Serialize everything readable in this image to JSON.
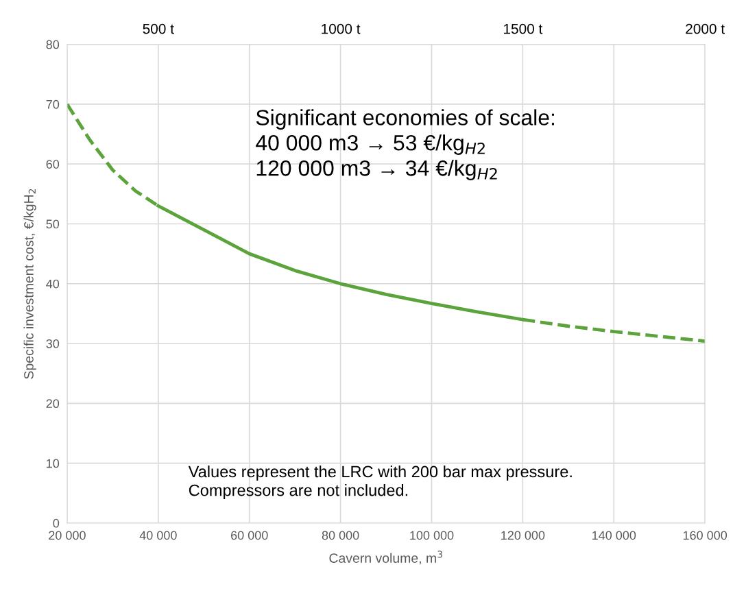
{
  "chart_data": {
    "type": "line",
    "xlabel": "Cavern volume, m$^{3}$",
    "ylabel": "Specific investment cost, €/kgH$_{2}$",
    "xlim": [
      20000,
      160000
    ],
    "xticks": [
      {
        "value": 20000,
        "label": "20 000"
      },
      {
        "value": 40000,
        "label": "40 000"
      },
      {
        "value": 60000,
        "label": "60 000"
      },
      {
        "value": 80000,
        "label": "80 000"
      },
      {
        "value": 100000,
        "label": "100 000"
      },
      {
        "value": 120000,
        "label": "120 000"
      },
      {
        "value": 140000,
        "label": "140 000"
      },
      {
        "value": 160000,
        "label": "160 000"
      }
    ],
    "x2lim": [
      250,
      2000
    ],
    "x2ticks": [
      {
        "value": 500,
        "label": "500 t"
      },
      {
        "value": 1000,
        "label": "1000 t"
      },
      {
        "value": 1500,
        "label": "1500 t"
      },
      {
        "value": 2000,
        "label": "2000 t"
      }
    ],
    "ylim": [
      0,
      80
    ],
    "yticks": [
      0,
      10,
      20,
      30,
      40,
      50,
      60,
      70,
      80
    ],
    "grid": true,
    "marker": "none",
    "series": [
      {
        "color": "#5ba33b",
        "line_style": "dashed",
        "x": [
          20000,
          25000,
          30000,
          35000,
          40000
        ],
        "values": [
          70,
          64,
          59,
          55.5,
          53
        ]
      },
      {
        "color": "#5ba33b",
        "line_style": "solid",
        "x": [
          40000,
          50000,
          60000,
          70000,
          80000,
          90000,
          100000,
          110000,
          120000
        ],
        "values": [
          53,
          49,
          45,
          42.2,
          40,
          38.2,
          36.7,
          35.3,
          34
        ]
      },
      {
        "color": "#5ba33b",
        "line_style": "dashed",
        "x": [
          120000,
          130000,
          140000,
          150000,
          160000
        ],
        "values": [
          34,
          32.9,
          32,
          31.2,
          30.4
        ]
      }
    ],
    "annotations": [
      "Significant economies of scale:\n40 000 m3 → 53 €/kg$_{H2}$\n120 000 m3 → 34 €/kg$_{H2}$",
      "Values represent the LRC with 200 bar max pressure.\nCompressors are not included."
    ]
  }
}
